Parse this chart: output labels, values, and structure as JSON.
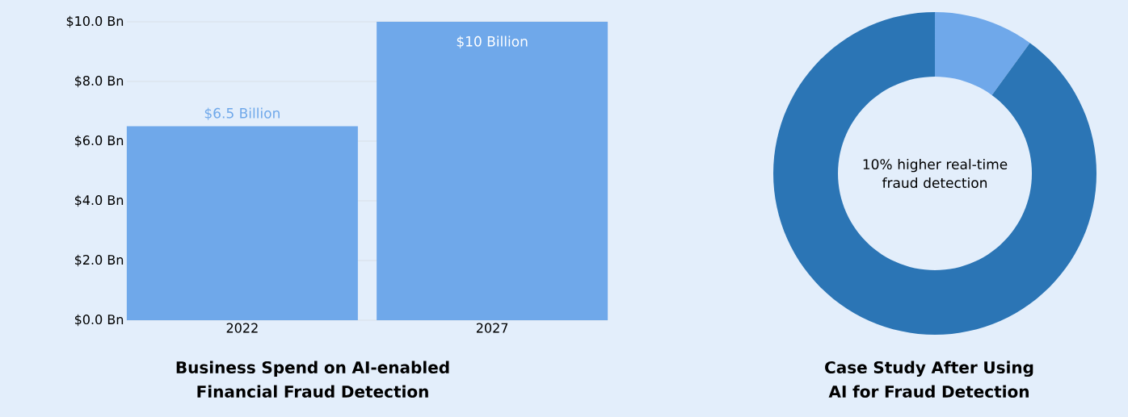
{
  "chart_data": [
    {
      "type": "bar",
      "title": "Business Spend on AI-enabled Financial Fraud Detection",
      "categories": [
        "2022",
        "2027"
      ],
      "values": [
        6.5,
        10
      ],
      "color": "#6fa8ea",
      "value_labels": [
        "$6.5 Billion",
        "$10 Billion"
      ],
      "ylim": [
        0,
        10
      ],
      "yticks": [
        {
          "value": 0,
          "label": "$0.0 Bn"
        },
        {
          "value": 2,
          "label": "$2.0 Bn"
        },
        {
          "value": 4,
          "label": "$4.0 Bn"
        },
        {
          "value": 6,
          "label": "$6.0 Bn"
        },
        {
          "value": 8,
          "label": "$8.0 Bn"
        },
        {
          "value": 10,
          "label": "$10.0 Bn"
        }
      ],
      "grid": "y"
    },
    {
      "type": "donut",
      "title": "Case Study After Using AI for Fraud Detection",
      "categories": [
        null,
        null
      ],
      "values": [
        10,
        90
      ],
      "colors": [
        "#6fa8ea",
        "#2b75b5"
      ],
      "annotations": [
        "10% higher real-time fraud detection"
      ]
    }
  ]
}
